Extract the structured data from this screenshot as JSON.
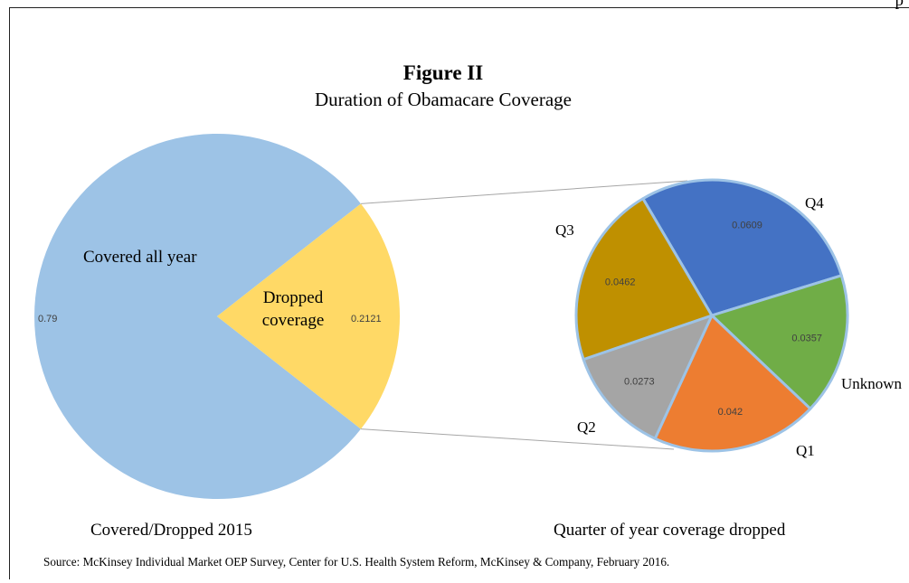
{
  "corner_text": "p",
  "title": "Figure II",
  "subtitle": "Duration of Obamacare Coverage",
  "source": "Source: McKinsey Individual Market OEP Survey, Center for U.S. Health System Reform, McKinsey & Company, February 2016.",
  "colors": {
    "covered": "#9dc3e6",
    "dropped": "#ffd966",
    "q4": "#4472c4",
    "unknown": "#70ad47",
    "q1": "#ed7d31",
    "q2": "#a5a5a5",
    "q3": "#bf9000",
    "slice_border": "#9dc3e6"
  },
  "chart_data": [
    {
      "type": "pie",
      "title": "Covered/Dropped 2015",
      "slices": [
        {
          "label": "Covered all year",
          "value": 0.79,
          "value_label": "0.79",
          "color": "#9dc3e6"
        },
        {
          "label": "Dropped coverage",
          "value": 0.2121,
          "value_label": "0.2121",
          "color": "#ffd966"
        }
      ]
    },
    {
      "type": "pie",
      "title": "Quarter of year coverage dropped",
      "slices": [
        {
          "label": "Q4",
          "value": 0.0609,
          "value_label": "0.0609",
          "color": "#4472c4"
        },
        {
          "label": "Unknown",
          "value": 0.0357,
          "value_label": "0.0357",
          "color": "#70ad47"
        },
        {
          "label": "Q1",
          "value": 0.042,
          "value_label": "0.042",
          "color": "#ed7d31"
        },
        {
          "label": "Q2",
          "value": 0.0273,
          "value_label": "0.0273",
          "color": "#a5a5a5"
        },
        {
          "label": "Q3",
          "value": 0.0462,
          "value_label": "0.0462",
          "color": "#bf9000"
        }
      ]
    }
  ]
}
